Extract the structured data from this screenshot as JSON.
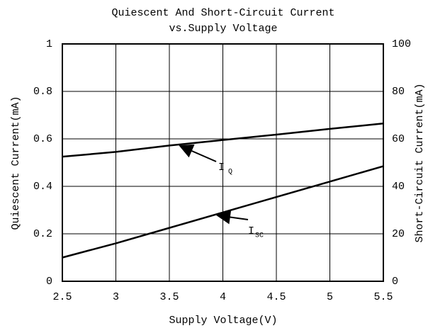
{
  "chart_data": {
    "type": "line",
    "title": "Quiescent And Short-Circuit Current",
    "subtitle": "vs.Supply Voltage",
    "x_label": "Supply Voltage(V)",
    "y_label": "Quiescent Current(mA)",
    "y2_label": "Short-Circuit Current(mA)",
    "x": [
      2.5,
      3,
      3.5,
      4,
      4.5,
      5,
      5.5
    ],
    "series": [
      {
        "name": "IQ",
        "color": "#000000",
        "values": [
          0.525,
          0.545,
          0.572,
          0.595,
          0.618,
          0.642,
          0.665
        ]
      },
      {
        "name": "ISC",
        "color": "#000000",
        "axis": "y2",
        "values": [
          10,
          16,
          22.5,
          29,
          35.5,
          42,
          48.5
        ]
      }
    ],
    "annotations": [
      {
        "label": "I",
        "sub": "Q",
        "series": 0
      },
      {
        "label": "I",
        "sub": "SC",
        "series": 1
      }
    ],
    "xlim": [
      2.5,
      5.5
    ],
    "xticks": [
      2.5,
      3,
      3.5,
      4,
      4.5,
      5,
      5.5
    ],
    "ylim": [
      0,
      1
    ],
    "yticks": [
      0,
      0.2,
      0.4,
      0.6,
      0.8,
      1
    ],
    "y2lim": [
      0,
      100
    ],
    "y2ticks": [
      0,
      20,
      40,
      60,
      80,
      100
    ],
    "grid": true
  }
}
